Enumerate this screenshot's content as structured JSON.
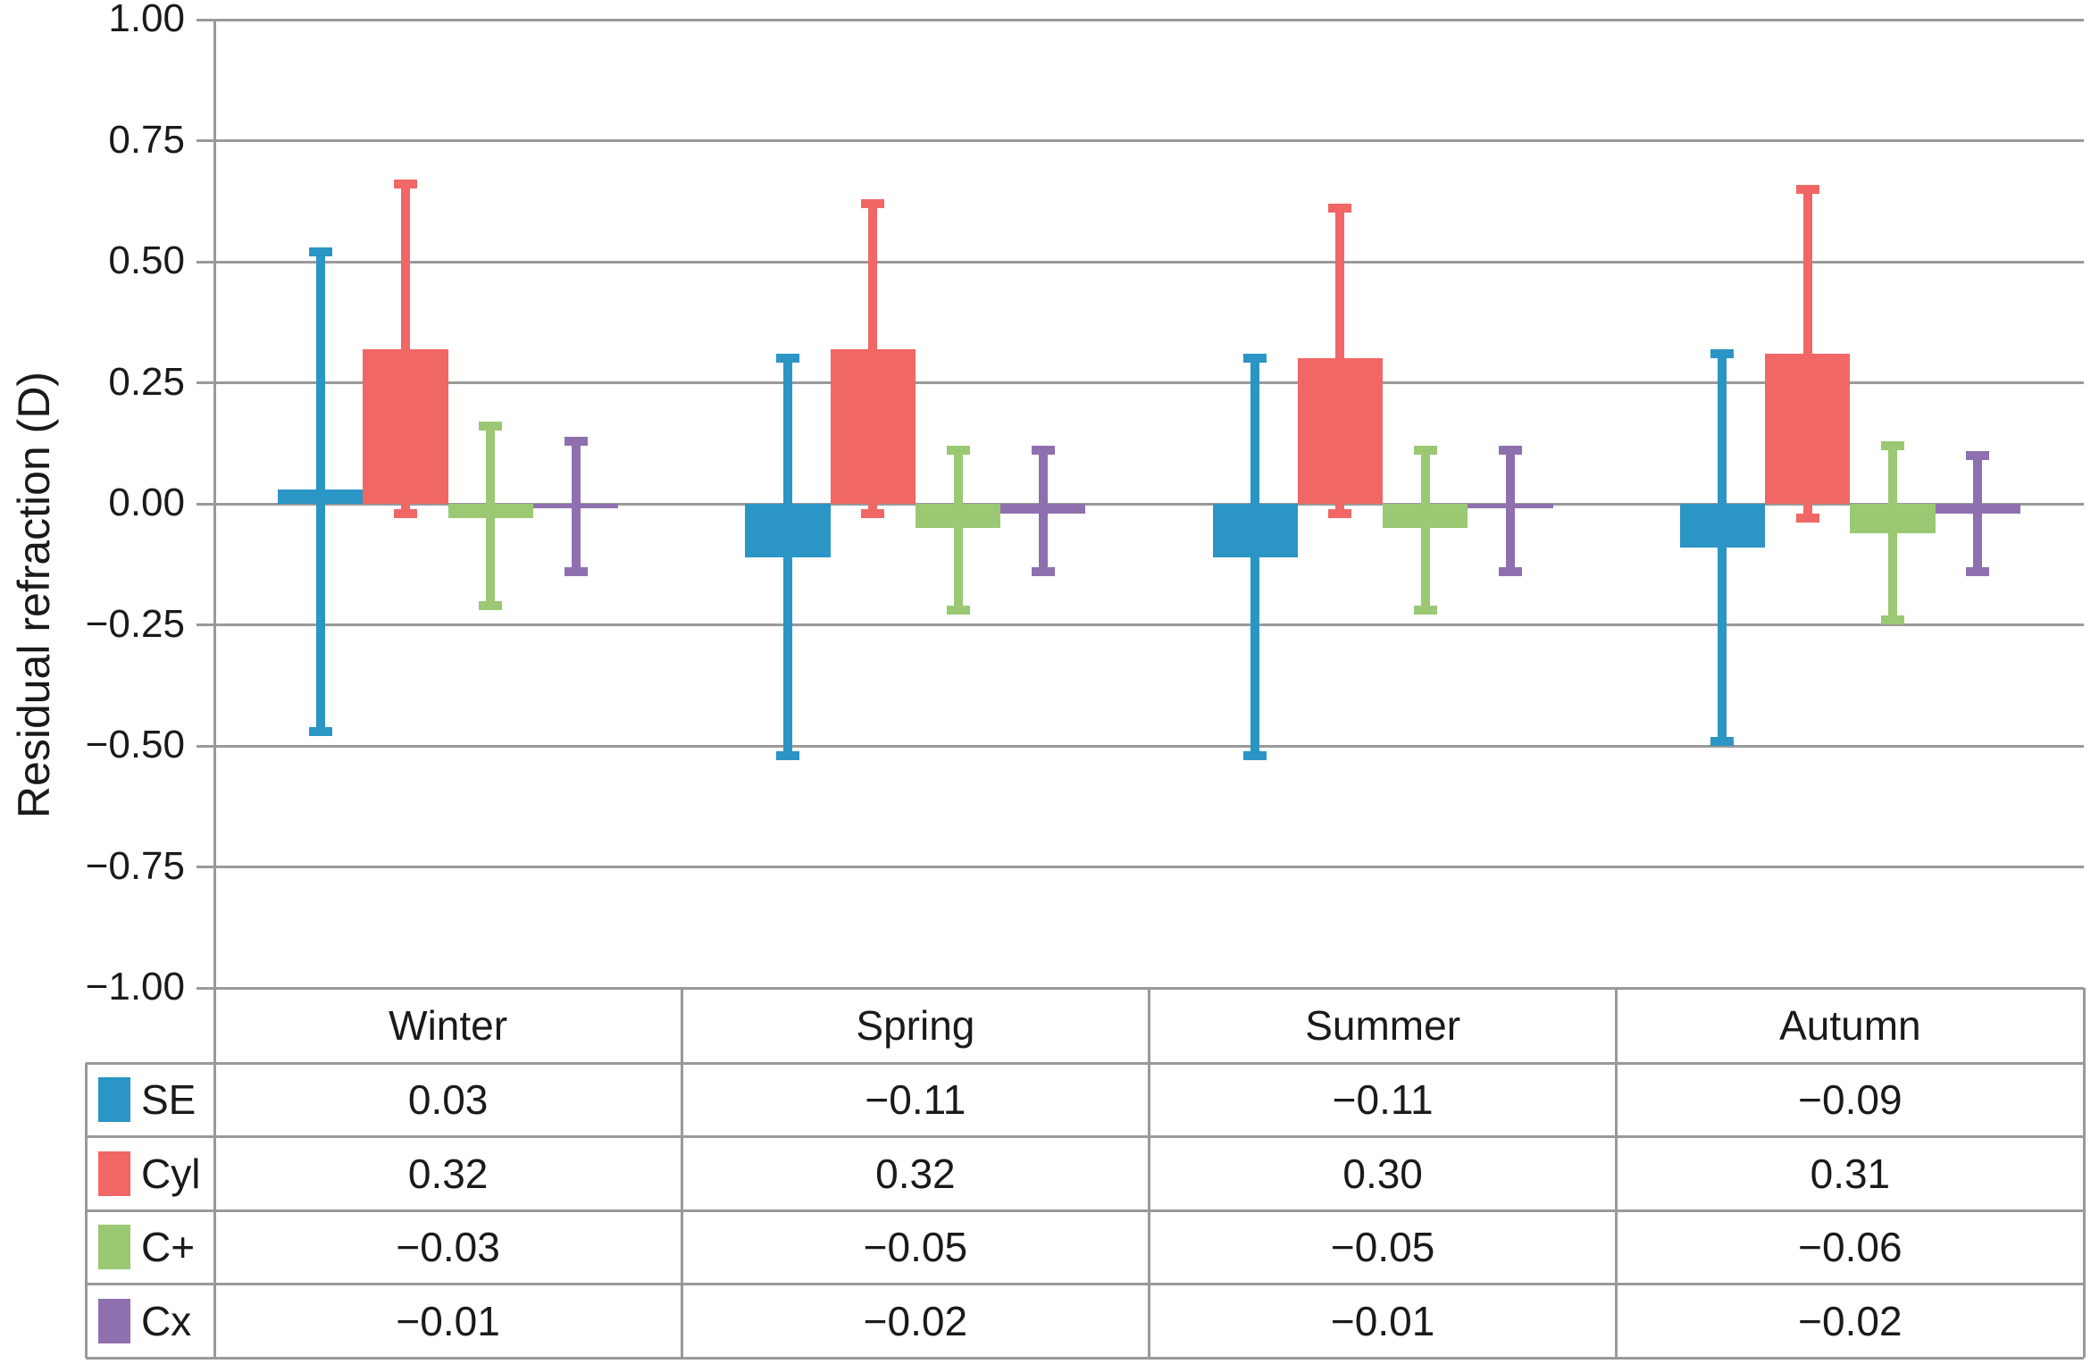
{
  "figure": {
    "ylabel": "Residual refraction (D)"
  },
  "axis": {
    "tick_labels": [
      "1.00",
      "0.75",
      "0.50",
      "0.25",
      "0.00",
      "−0.25",
      "−0.50",
      "−0.75",
      "−1.00"
    ],
    "tick_values": [
      1.0,
      0.75,
      0.5,
      0.25,
      0.0,
      -0.25,
      -0.5,
      -0.75,
      -1.0
    ]
  },
  "chart_data": {
    "type": "bar",
    "categories": [
      "Winter",
      "Spring",
      "Summer",
      "Autumn"
    ],
    "series": [
      {
        "name": "SE",
        "color": "#2B95C5",
        "values": [
          0.03,
          -0.11,
          -0.11,
          -0.09
        ],
        "labels": [
          "0.03",
          "−0.11",
          "−0.11",
          "−0.09"
        ],
        "error_low": [
          -0.47,
          -0.52,
          -0.52,
          -0.49
        ],
        "error_high": [
          0.52,
          0.3,
          0.3,
          0.31
        ]
      },
      {
        "name": "Cyl",
        "color": "#F06765",
        "values": [
          0.32,
          0.32,
          0.3,
          0.31
        ],
        "labels": [
          "0.32",
          "0.32",
          "0.30",
          "0.31"
        ],
        "error_low": [
          -0.02,
          -0.02,
          -0.02,
          -0.03
        ],
        "error_high": [
          0.66,
          0.62,
          0.61,
          0.65
        ]
      },
      {
        "name": "C+",
        "color": "#9BC873",
        "values": [
          -0.03,
          -0.05,
          -0.05,
          -0.06
        ],
        "labels": [
          "−0.03",
          "−0.05",
          "−0.05",
          "−0.06"
        ],
        "error_low": [
          -0.21,
          -0.22,
          -0.22,
          -0.24
        ],
        "error_high": [
          0.16,
          0.11,
          0.11,
          0.12
        ]
      },
      {
        "name": "Cx",
        "color": "#8F70AF",
        "values": [
          -0.01,
          -0.02,
          -0.01,
          -0.02
        ],
        "labels": [
          "−0.01",
          "−0.02",
          "−0.01",
          "−0.02"
        ],
        "error_low": [
          -0.14,
          -0.14,
          -0.14,
          -0.14
        ],
        "error_high": [
          0.13,
          0.11,
          0.11,
          0.1
        ]
      }
    ],
    "title": "",
    "xlabel": "",
    "ylabel": "Residual refraction (D)",
    "ylim": [
      -1.0,
      1.0
    ],
    "ystep": 0.25,
    "grid": true,
    "legend_position": "table-left",
    "grid_color": "#999999",
    "text_color": "#1a1a1a"
  }
}
